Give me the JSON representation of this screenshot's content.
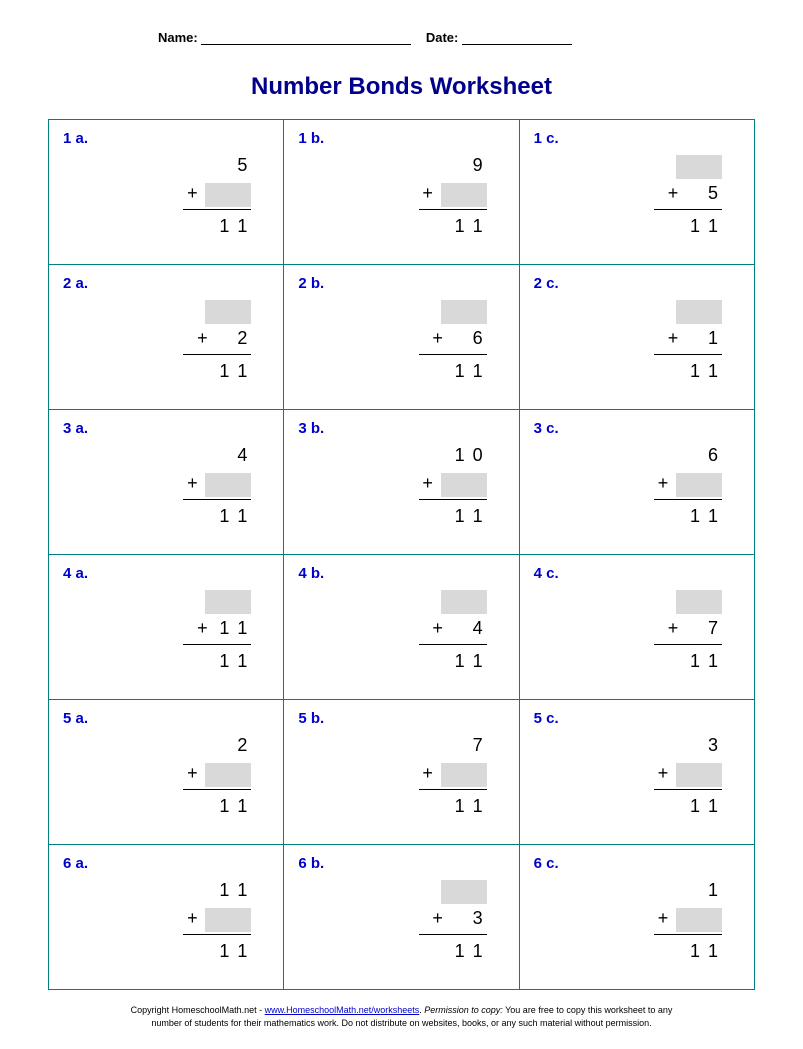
{
  "header": {
    "name_label": "Name:",
    "date_label": "Date:"
  },
  "title": "Number Bonds Worksheet",
  "grid_border_color": "#008080",
  "label_color": "#0000cd",
  "title_color": "#00008b",
  "blank_box_color": "#d9d9d9",
  "operator": "+",
  "problems": [
    [
      {
        "label": "1 a.",
        "top": [
          "",
          "5"
        ],
        "mid": "blank",
        "sum": [
          "1",
          "1"
        ]
      },
      {
        "label": "1 b.",
        "top": [
          "",
          "9"
        ],
        "mid": "blank",
        "sum": [
          "1",
          "1"
        ]
      },
      {
        "label": "1 c.",
        "top": "blank",
        "mid": [
          "",
          "5"
        ],
        "sum": [
          "1",
          "1"
        ]
      }
    ],
    [
      {
        "label": "2 a.",
        "top": "blank",
        "mid": [
          "",
          "2"
        ],
        "sum": [
          "1",
          "1"
        ]
      },
      {
        "label": "2 b.",
        "top": "blank",
        "mid": [
          "",
          "6"
        ],
        "sum": [
          "1",
          "1"
        ]
      },
      {
        "label": "2 c.",
        "top": "blank",
        "mid": [
          "",
          "1"
        ],
        "sum": [
          "1",
          "1"
        ]
      }
    ],
    [
      {
        "label": "3 a.",
        "top": [
          "",
          "4"
        ],
        "mid": "blank",
        "sum": [
          "1",
          "1"
        ]
      },
      {
        "label": "3 b.",
        "top": [
          "1",
          "0"
        ],
        "mid": "blank",
        "sum": [
          "1",
          "1"
        ]
      },
      {
        "label": "3 c.",
        "top": [
          "",
          "6"
        ],
        "mid": "blank",
        "sum": [
          "1",
          "1"
        ]
      }
    ],
    [
      {
        "label": "4 a.",
        "top": "blank",
        "mid": [
          "1",
          "1"
        ],
        "sum": [
          "1",
          "1"
        ]
      },
      {
        "label": "4 b.",
        "top": "blank",
        "mid": [
          "",
          "4"
        ],
        "sum": [
          "1",
          "1"
        ]
      },
      {
        "label": "4 c.",
        "top": "blank",
        "mid": [
          "",
          "7"
        ],
        "sum": [
          "1",
          "1"
        ]
      }
    ],
    [
      {
        "label": "5 a.",
        "top": [
          "",
          "2"
        ],
        "mid": "blank",
        "sum": [
          "1",
          "1"
        ]
      },
      {
        "label": "5 b.",
        "top": [
          "",
          "7"
        ],
        "mid": "blank",
        "sum": [
          "1",
          "1"
        ]
      },
      {
        "label": "5 c.",
        "top": [
          "",
          "3"
        ],
        "mid": "blank",
        "sum": [
          "1",
          "1"
        ]
      }
    ],
    [
      {
        "label": "6 a.",
        "top": [
          "1",
          "1"
        ],
        "mid": "blank",
        "sum": [
          "1",
          "1"
        ]
      },
      {
        "label": "6 b.",
        "top": "blank",
        "mid": [
          "",
          "3"
        ],
        "sum": [
          "1",
          "1"
        ]
      },
      {
        "label": "6 c.",
        "top": [
          "",
          "1"
        ],
        "mid": "blank",
        "sum": [
          "1",
          "1"
        ]
      }
    ]
  ],
  "footer": {
    "line1_a": "Copyright HomeschoolMath.net - ",
    "line1_link": "www.HomeschoolMath.net/worksheets",
    "line1_b": ". ",
    "line1_italic": "Permission to copy:",
    "line1_c": " You are free to copy this worksheet to any",
    "line2": "number of students for their mathematics work. Do not distribute on websites, books, or any such material without permission."
  }
}
